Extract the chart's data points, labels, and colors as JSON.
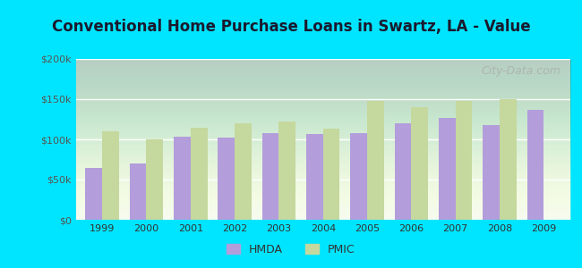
{
  "title": "Conventional Home Purchase Loans in Swartz, LA - Value",
  "years": [
    1999,
    2000,
    2001,
    2002,
    2003,
    2004,
    2005,
    2006,
    2007,
    2008,
    2009
  ],
  "hmda": [
    65000,
    70000,
    103000,
    102000,
    108000,
    107000,
    108000,
    120000,
    127000,
    118000,
    137000
  ],
  "pmic": [
    110000,
    100000,
    115000,
    120000,
    122000,
    113000,
    148000,
    140000,
    148000,
    150000,
    null
  ],
  "hmda_color": "#b39ddb",
  "pmic_color": "#c5d89d",
  "outer_bg": "#00e5ff",
  "plot_bg_top": "#f0f9f0",
  "plot_bg_bottom": "#e8faf0",
  "ylim": [
    0,
    200000
  ],
  "yticks": [
    0,
    50000,
    100000,
    150000,
    200000
  ],
  "ytick_labels": [
    "$0",
    "$50k",
    "$100k",
    "$150k",
    "$200k"
  ],
  "bar_width": 0.38,
  "title_fontsize": 12,
  "tick_fontsize": 8,
  "watermark": "City-Data.com",
  "watermark_fontsize": 9
}
